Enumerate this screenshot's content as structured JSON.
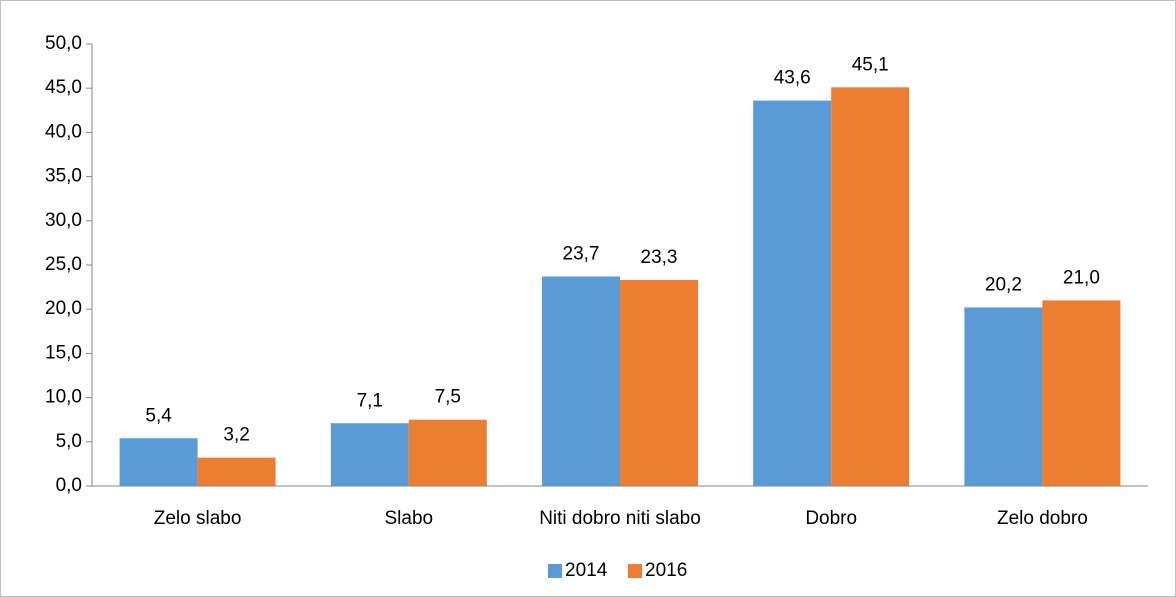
{
  "chart_data": {
    "type": "bar",
    "categories": [
      "Zelo slabo",
      "Slabo",
      "Niti dobro niti slabo",
      "Dobro",
      "Zelo dobro"
    ],
    "series": [
      {
        "name": "2014",
        "color": "#5b9bd5",
        "values": [
          5.4,
          7.1,
          23.7,
          43.6,
          20.2
        ],
        "value_labels": [
          "5,4",
          "7,1",
          "23,7",
          "43,6",
          "20,2"
        ]
      },
      {
        "name": "2016",
        "color": "#ed7d31",
        "values": [
          3.2,
          7.5,
          23.3,
          45.1,
          21.0
        ],
        "value_labels": [
          "3,2",
          "7,5",
          "23,3",
          "45,1",
          "21,0"
        ]
      }
    ],
    "ylim": [
      0,
      50
    ],
    "yticks": [
      {
        "value": 0,
        "label": "0,0"
      },
      {
        "value": 5,
        "label": "5,0"
      },
      {
        "value": 10,
        "label": "10,0"
      },
      {
        "value": 15,
        "label": "15,0"
      },
      {
        "value": 20,
        "label": "20,0"
      },
      {
        "value": 25,
        "label": "25,0"
      },
      {
        "value": 30,
        "label": "30,0"
      },
      {
        "value": 35,
        "label": "35,0"
      },
      {
        "value": 40,
        "label": "40,0"
      },
      {
        "value": 45,
        "label": "45,0"
      },
      {
        "value": 50,
        "label": "50,0"
      }
    ],
    "grid": false,
    "legend": "bottom"
  }
}
